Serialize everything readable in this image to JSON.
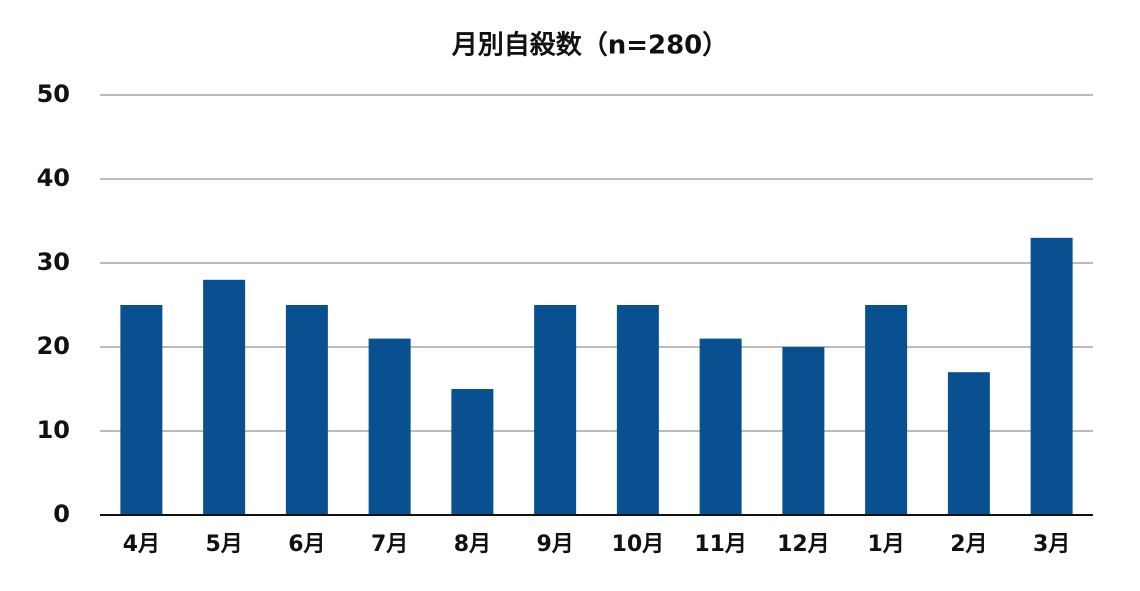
{
  "chart_data": {
    "type": "bar",
    "title": "月別自殺数（n=280）",
    "categories": [
      "4月",
      "5月",
      "6月",
      "7月",
      "8月",
      "9月",
      "10月",
      "11月",
      "12月",
      "1月",
      "2月",
      "3月"
    ],
    "values": [
      25,
      28,
      25,
      21,
      15,
      25,
      25,
      21,
      20,
      25,
      17,
      33
    ],
    "color": "#08508f",
    "ylim": [
      0,
      50
    ],
    "yticks": [
      0,
      10,
      20,
      30,
      40,
      50
    ],
    "grid": true
  }
}
